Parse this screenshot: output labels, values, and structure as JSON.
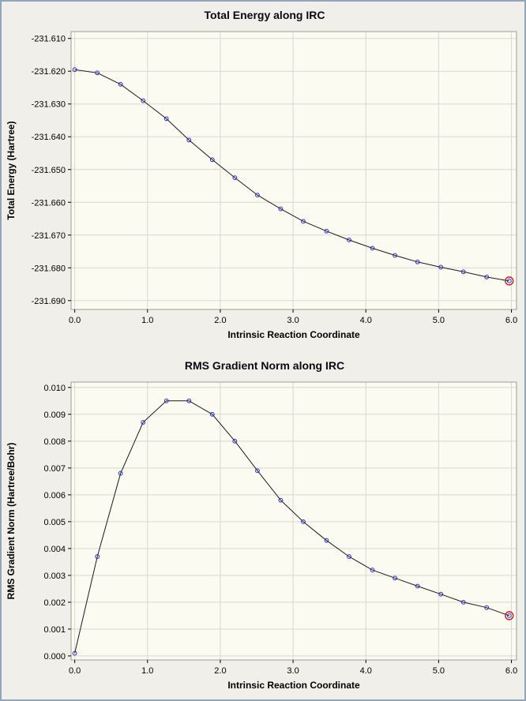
{
  "window": {
    "bg": "#f0efe9",
    "plot_bg": "#fbfbf1",
    "grid_color": "#d9d8d0",
    "frame_color": "#9c9c96",
    "line_color": "#1a1a1a",
    "marker_color": "#2929c8",
    "highlight_color": "#c81e1e",
    "text_color": "#000000",
    "border_color": "#93a5b8"
  },
  "chart_data": [
    {
      "type": "line",
      "title": "Total Energy along IRC",
      "xlabel": "Intrinsic Reaction Coordinate",
      "ylabel": "Total Energy (Hartree)",
      "x": [
        0.0,
        0.31,
        0.63,
        0.94,
        1.26,
        1.57,
        1.89,
        2.2,
        2.51,
        2.83,
        3.14,
        3.46,
        3.77,
        4.09,
        4.4,
        4.71,
        5.03,
        5.34,
        5.66,
        5.97
      ],
      "y": [
        -231.6195,
        -231.6205,
        -231.624,
        -231.629,
        -231.6345,
        -231.641,
        -231.647,
        -231.6525,
        -231.6578,
        -231.662,
        -231.6658,
        -231.6688,
        -231.6715,
        -231.674,
        -231.6762,
        -231.6782,
        -231.6798,
        -231.6812,
        -231.6828,
        -231.684
      ],
      "xlim": [
        -0.05,
        6.07
      ],
      "ylim": [
        -231.6927,
        -231.6079
      ],
      "xticks": [
        0,
        1,
        2,
        3,
        4,
        5,
        6
      ],
      "xtick_labels": [
        "0.0",
        "1.0",
        "2.0",
        "3.0",
        "4.0",
        "5.0",
        "6.0"
      ],
      "yticks": [
        -231.61,
        -231.62,
        -231.63,
        -231.64,
        -231.65,
        -231.66,
        -231.67,
        -231.68,
        -231.69
      ],
      "ytick_labels": [
        "-231.610",
        "-231.620",
        "-231.630",
        "-231.640",
        "-231.650",
        "-231.660",
        "-231.670",
        "-231.680",
        "-231.690"
      ],
      "grid": true,
      "legend": "none",
      "highlight_last_point": true
    },
    {
      "type": "line",
      "title": "RMS Gradient Norm along IRC",
      "xlabel": "Intrinsic Reaction Coordinate",
      "ylabel": "RMS Gradient Norm (Hartree/Bohr)",
      "x": [
        0.0,
        0.31,
        0.63,
        0.94,
        1.26,
        1.57,
        1.89,
        2.2,
        2.51,
        2.83,
        3.14,
        3.46,
        3.77,
        4.09,
        4.4,
        4.71,
        5.03,
        5.34,
        5.66,
        5.97
      ],
      "y": [
        0.0001,
        0.0037,
        0.0068,
        0.0087,
        0.0095,
        0.0095,
        0.009,
        0.008,
        0.0069,
        0.0058,
        0.005,
        0.0043,
        0.0037,
        0.0032,
        0.0029,
        0.0026,
        0.0023,
        0.002,
        0.0018,
        0.0015
      ],
      "xlim": [
        -0.05,
        6.07
      ],
      "ylim": [
        -0.00015,
        0.0102
      ],
      "xticks": [
        0,
        1,
        2,
        3,
        4,
        5,
        6
      ],
      "xtick_labels": [
        "0.0",
        "1.0",
        "2.0",
        "3.0",
        "4.0",
        "5.0",
        "6.0"
      ],
      "yticks": [
        0.0,
        0.001,
        0.002,
        0.003,
        0.004,
        0.005,
        0.006,
        0.007,
        0.008,
        0.009,
        0.01
      ],
      "ytick_labels": [
        "0.000",
        "0.001",
        "0.002",
        "0.003",
        "0.004",
        "0.005",
        "0.006",
        "0.007",
        "0.008",
        "0.009",
        "0.010"
      ],
      "grid": true,
      "legend": "none",
      "highlight_last_point": true
    }
  ]
}
